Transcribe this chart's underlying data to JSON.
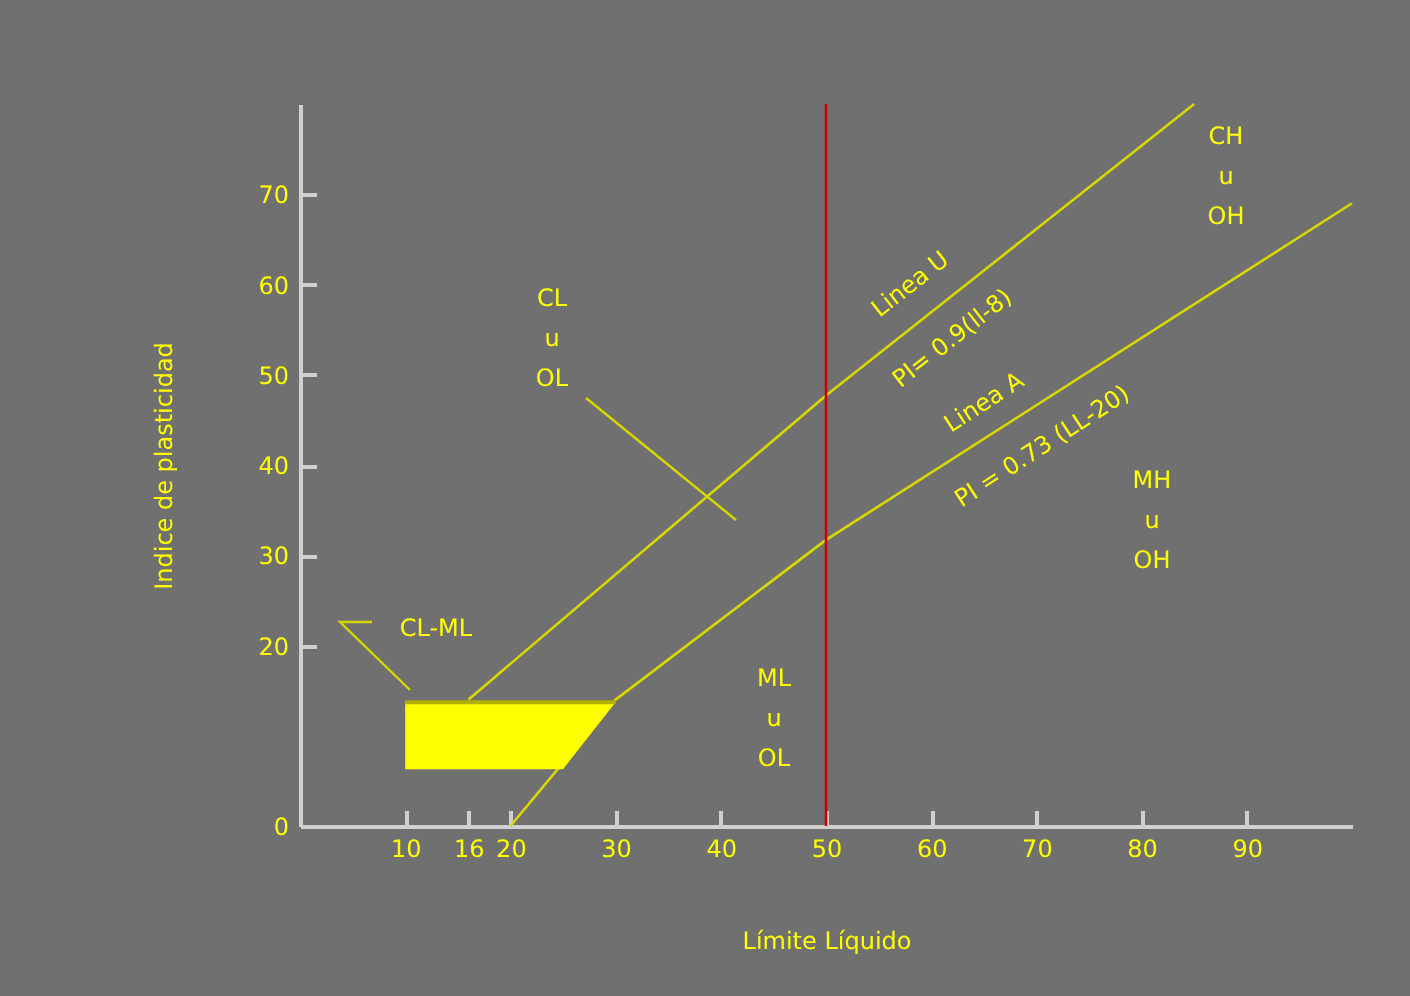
{
  "chart_data": {
    "type": "line",
    "xlabel": "Límite Líquido",
    "ylabel": "Indice de plasticidad",
    "xlim": [
      0,
      100
    ],
    "ylim": [
      0,
      80
    ],
    "xticks": [
      10,
      16,
      20,
      30,
      40,
      50,
      60,
      70,
      80,
      90
    ],
    "yticks": [
      0,
      20,
      30,
      40,
      50,
      60,
      70
    ],
    "marker": "none",
    "line_style": "solid",
    "series": [
      {
        "type": "line",
        "color": "#d8d800",
        "x": [
          16,
          50,
          85
        ],
        "values": [
          14,
          47.7,
          80
        ]
      },
      {
        "type": "line",
        "color": "#d8d800",
        "x": [
          20,
          30,
          50,
          100
        ],
        "values": [
          0,
          14,
          31.7,
          69
        ]
      },
      {
        "type": "line",
        "color": "#b0b000",
        "x": [
          10,
          25,
          30
        ],
        "values": [
          13.7,
          13.7,
          13.7
        ],
        "lower": [
          6.3,
          6.3,
          13.7
        ],
        "upper": [
          13.7,
          13.7,
          13.7
        ]
      }
    ],
    "ref_lines": [
      {
        "axis": "x",
        "value": 50,
        "color": "#cc0000"
      }
    ],
    "annotations": [
      "CL\nu\nOL",
      "CL-ML",
      "ML\nu\nOL",
      "MH\nu\nOH",
      "CH\nu\nOH",
      "Linea U",
      "PI= 0.9(ll-8)",
      "Linea A",
      "PI = 0.73 (LL-20)"
    ]
  }
}
